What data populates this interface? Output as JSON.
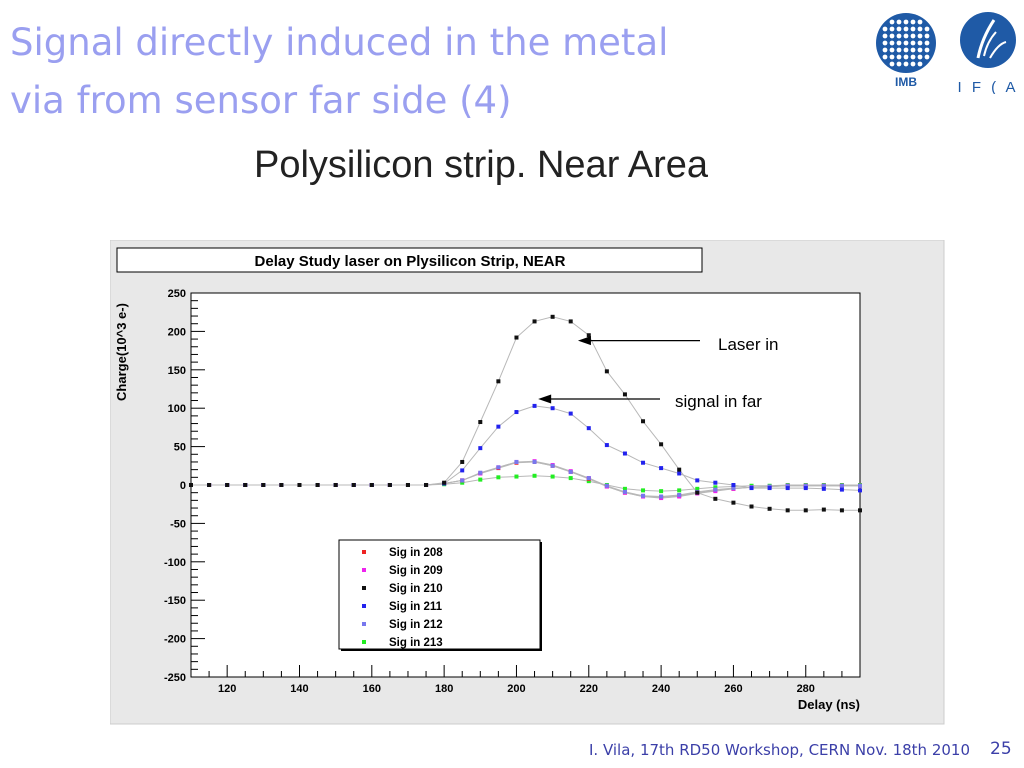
{
  "slide": {
    "title_line1": "Signal directly induced in the metal",
    "title_line2": "via from sensor far side (4)",
    "subtitle": "Polysilicon strip. Near Area",
    "footer": "I. Vila, 17th RD50 Workshop, CERN  Nov. 18th 2010",
    "page_number": "25",
    "logo_imb_text": "IMB",
    "logo_ifca_text": "I F ( A",
    "colors": {
      "title": "#9a9ff0",
      "footer": "#3b3fa8",
      "imb_blue": "#1f5aa6",
      "ifca_blue": "#1f5aa6"
    }
  },
  "chart_data": {
    "type": "scatter",
    "title": "Delay Study laser on Plysilicon Strip, NEAR",
    "xlabel": "Delay (ns)",
    "ylabel": "Charge(10^3 e-)",
    "xlim": [
      110,
      295
    ],
    "ylim": [
      -250,
      250
    ],
    "xticks": [
      120,
      140,
      160,
      180,
      200,
      220,
      240,
      260,
      280
    ],
    "yticks": [
      250,
      200,
      150,
      100,
      50,
      0,
      -50,
      -100,
      -150,
      -200,
      -250
    ],
    "legend_position": "bottom-left",
    "grid": false,
    "x": [
      110,
      115,
      120,
      125,
      130,
      135,
      140,
      145,
      150,
      155,
      160,
      165,
      170,
      175,
      180,
      185,
      190,
      195,
      200,
      205,
      210,
      215,
      220,
      225,
      230,
      235,
      240,
      245,
      250,
      255,
      260,
      265,
      270,
      275,
      280,
      285,
      290,
      295
    ],
    "series": [
      {
        "name": "Sig in 208",
        "color": "#ee2222",
        "values": [
          0,
          0,
          0,
          0,
          0,
          0,
          0,
          0,
          0,
          0,
          0,
          0,
          0,
          0,
          2,
          6,
          15,
          22,
          29,
          30,
          25,
          17,
          8,
          -2,
          -10,
          -15,
          -16,
          -14,
          -10,
          -7,
          -5,
          -3,
          -2,
          -1,
          -1,
          -1,
          -1,
          -1
        ]
      },
      {
        "name": "Sig in 209",
        "color": "#ee22ee",
        "values": [
          0,
          0,
          0,
          0,
          0,
          0,
          0,
          0,
          0,
          0,
          0,
          0,
          0,
          0,
          2,
          6,
          15,
          23,
          30,
          31,
          26,
          18,
          9,
          -2,
          -10,
          -15,
          -17,
          -15,
          -11,
          -8,
          -5,
          -3,
          -2,
          -1,
          -1,
          -1,
          -1,
          -1
        ]
      },
      {
        "name": "Sig in 210",
        "color": "#111111",
        "values": [
          0,
          0,
          0,
          0,
          0,
          0,
          0,
          0,
          0,
          0,
          0,
          0,
          0,
          0,
          3,
          30,
          82,
          135,
          192,
          213,
          219,
          213,
          195,
          148,
          118,
          83,
          53,
          20,
          -10,
          -18,
          -23,
          -28,
          -31,
          -33,
          -33,
          -32,
          -33,
          -33
        ]
      },
      {
        "name": "Sig in 211",
        "color": "#2222ee",
        "values": [
          0,
          0,
          0,
          0,
          0,
          0,
          0,
          0,
          0,
          0,
          0,
          0,
          0,
          0,
          2,
          19,
          48,
          76,
          95,
          103,
          100,
          93,
          74,
          52,
          41,
          29,
          22,
          15,
          6,
          3,
          0,
          -4,
          -4,
          -4,
          -4,
          -5,
          -6,
          -7
        ]
      },
      {
        "name": "Sig in 212",
        "color": "#7777ee",
        "values": [
          0,
          0,
          0,
          0,
          0,
          0,
          0,
          0,
          0,
          0,
          0,
          0,
          0,
          0,
          2,
          6,
          16,
          23,
          30,
          30,
          25,
          17,
          9,
          -1,
          -9,
          -14,
          -15,
          -13,
          -9,
          -6,
          -4,
          -3,
          -2,
          -1,
          -1,
          -1,
          -1,
          -1
        ]
      },
      {
        "name": "Sig in 213",
        "color": "#22ee22",
        "values": [
          0,
          0,
          0,
          0,
          0,
          0,
          0,
          0,
          0,
          0,
          0,
          0,
          0,
          0,
          1,
          3,
          7,
          10,
          11,
          12,
          11,
          9,
          5,
          0,
          -5,
          -7,
          -8,
          -7,
          -5,
          -3,
          -2,
          -1,
          -1,
          0,
          0,
          0,
          0,
          0
        ]
      }
    ],
    "annotations": [
      {
        "text": "Laser in",
        "arrow_to": [
          217,
          188
        ]
      },
      {
        "text": "signal in far",
        "arrow_to": [
          206,
          112
        ]
      }
    ]
  }
}
